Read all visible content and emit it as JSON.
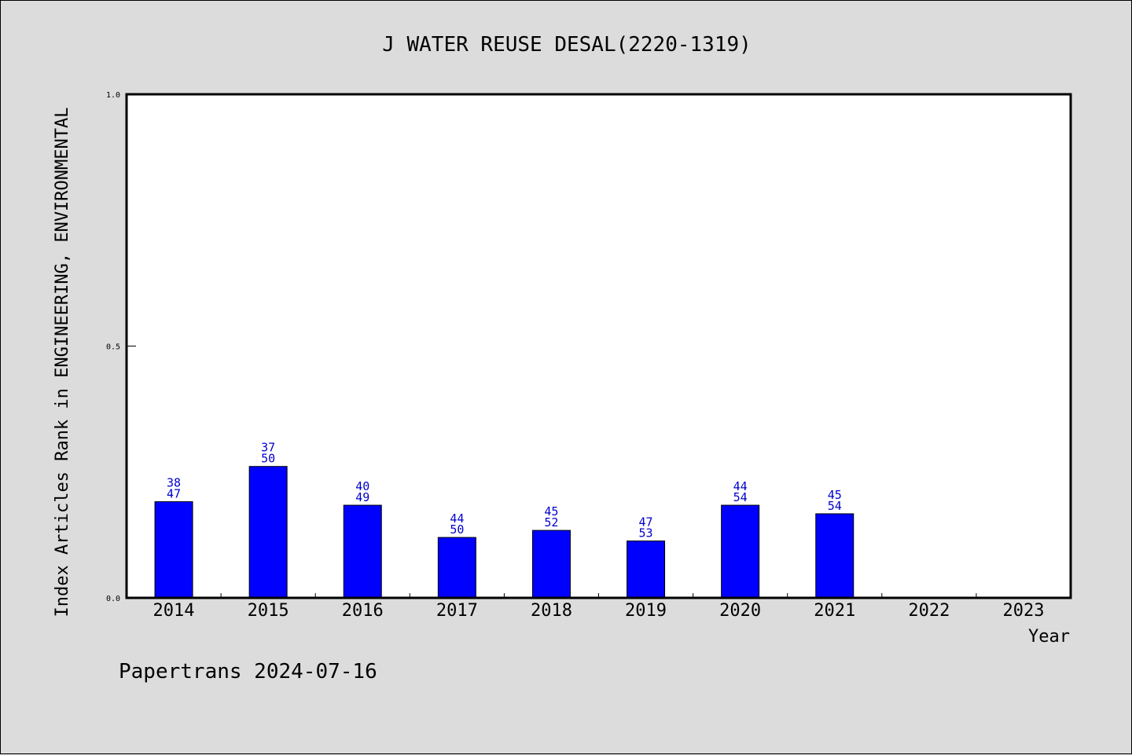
{
  "chart_data": {
    "type": "bar",
    "title": "J WATER REUSE DESAL(2220-1319)",
    "xlabel": "Year",
    "ylabel": "Index Articles Rank in ENGINEERING, ENVIRONMENTAL",
    "ylim": [
      0,
      1
    ],
    "yticks": [
      "0.0",
      "0.5",
      "1.0"
    ],
    "categories": [
      "2014",
      "2015",
      "2016",
      "2017",
      "2018",
      "2019",
      "2020",
      "2021",
      "2022",
      "2023"
    ],
    "values": [
      0.191,
      0.261,
      0.184,
      0.12,
      0.134,
      0.113,
      0.184,
      0.167,
      null,
      null
    ],
    "labels_top": [
      "38",
      "37",
      "40",
      "44",
      "45",
      "47",
      "44",
      "45",
      "",
      ""
    ],
    "labels_bottom": [
      "47",
      "50",
      "49",
      "50",
      "52",
      "53",
      "54",
      "54",
      "",
      ""
    ],
    "bar_color": "#0000ff",
    "label_color": "#0000cc",
    "grid": false,
    "legend": "none"
  },
  "footer": "Papertrans 2024-07-16"
}
